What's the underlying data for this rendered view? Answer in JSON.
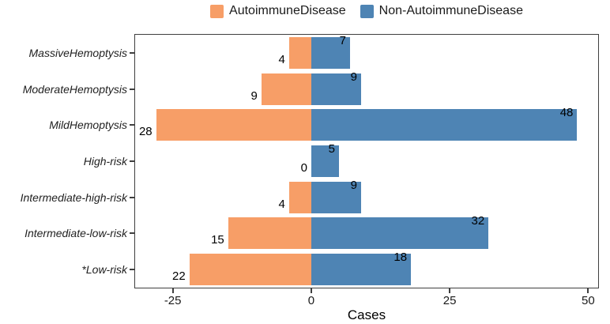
{
  "chart_data": {
    "type": "bar",
    "variant": "horizontal-diverging",
    "title": "",
    "xlabel": "Cases",
    "ylabel": "",
    "categories": [
      "MassiveHemoptysis",
      "ModerateHemoptysis",
      "MildHemoptysis",
      "High-risk",
      "Intermediate-high-risk",
      "Intermediate-low-risk",
      "*Low-risk"
    ],
    "series": [
      {
        "name": "AutoimmuneDisease",
        "color": "#F79E67",
        "direction": "left",
        "values": [
          4,
          9,
          28,
          0,
          4,
          15,
          22
        ]
      },
      {
        "name": "Non-AutoimmuneDisease",
        "color": "#4E84B4",
        "direction": "right",
        "values": [
          7,
          9,
          48,
          5,
          9,
          32,
          18
        ]
      }
    ],
    "x_ticks": [
      -25,
      0,
      25,
      50
    ],
    "xlim": [
      -31.8,
      51.8
    ],
    "grid": false,
    "legend_position": "top",
    "bar_value_labels": true
  }
}
